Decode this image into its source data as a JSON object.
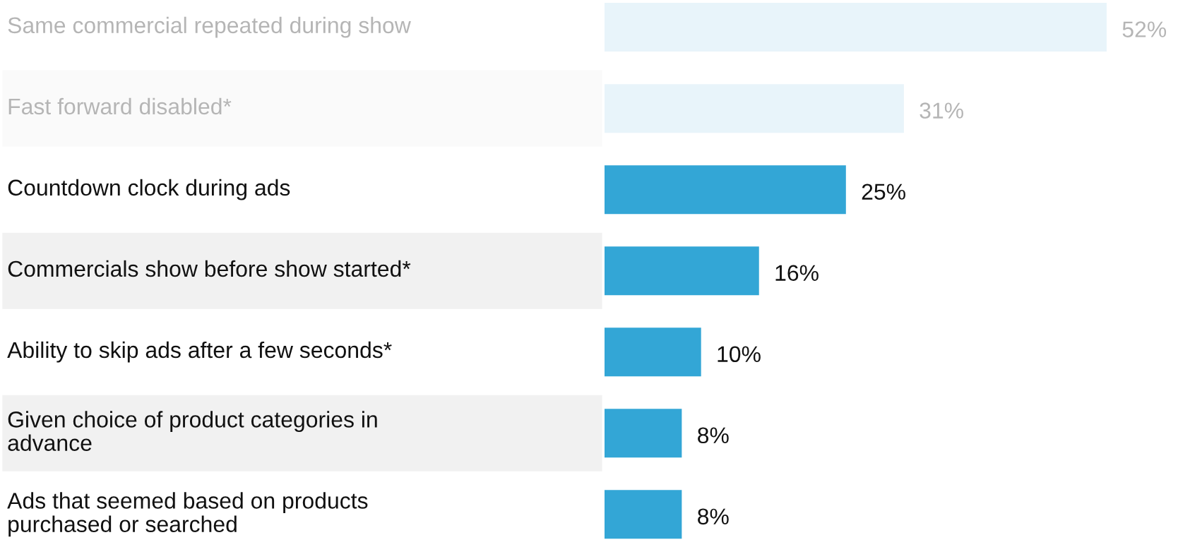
{
  "chart_data": {
    "type": "bar",
    "orientation": "horizontal",
    "categories": [
      "Same commercial repeated during show",
      "Fast forward disabled*",
      "Countdown clock during ads",
      "Commercials show before show started*",
      "Ability to skip ads after a few seconds*",
      "Given choice of product categories in\nadvance",
      "Ads that seemed based on products\npurchased or searched"
    ],
    "values": [
      52,
      31,
      25,
      16,
      10,
      8,
      8
    ],
    "colors": [
      "#e8f4fa",
      "#e8f4fa",
      "#33a6d6",
      "#33a6d6",
      "#33a6d6",
      "#33a6d6",
      "#33a6d6"
    ],
    "value_labels": [
      "52%",
      "31%",
      "25%",
      "16%",
      "10%",
      "8%",
      "8%"
    ]
  }
}
